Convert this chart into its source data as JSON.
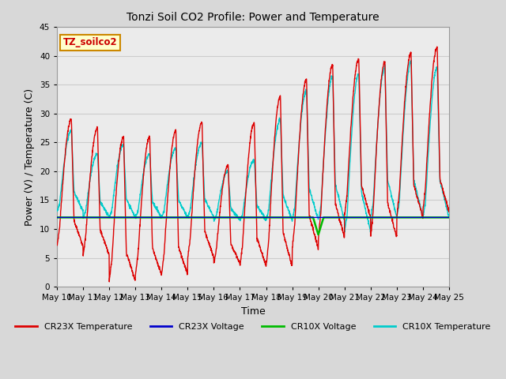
{
  "title": "Tonzi Soil CO2 Profile: Power and Temperature",
  "xlabel": "Time",
  "ylabel": "Power (V) / Temperature (C)",
  "ylim": [
    0,
    45
  ],
  "annotation_text": "TZ_soilco2",
  "annotation_color": "#cc0000",
  "annotation_bg": "#ffffcc",
  "annotation_border": "#cc8800",
  "cr23x_temp_color": "#dd0000",
  "cr23x_volt_color": "#0000cc",
  "cr10x_volt_color": "#00bb00",
  "cr10x_temp_color": "#00cccc",
  "line_width": 1.0,
  "legend_labels": [
    "CR23X Temperature",
    "CR23X Voltage",
    "CR10X Voltage",
    "CR10X Temperature"
  ],
  "x_tick_labels": [
    "May 10",
    "May 11",
    "May 12",
    "May 13",
    "May 14",
    "May 15",
    "May 16",
    "May 17",
    "May 18",
    "May 19",
    "May 20",
    "May 21",
    "May 22",
    "May 23",
    "May 24",
    "May 25"
  ],
  "yticks": [
    0,
    5,
    10,
    15,
    20,
    25,
    30,
    35,
    40,
    45
  ],
  "grid_color": "#cccccc",
  "fig_bg": "#d8d8d8",
  "plot_bg": "#ebebeb"
}
